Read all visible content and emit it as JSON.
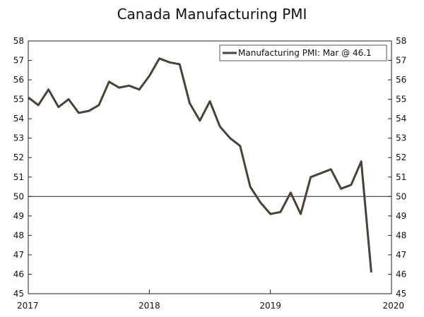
{
  "chart_data": {
    "type": "line",
    "title": "Canada Manufacturing PMI",
    "xlabel": "",
    "ylabel": "",
    "xlim": [
      2017,
      2020
    ],
    "ylim": [
      45,
      58
    ],
    "y_ticks": [
      "45",
      "46",
      "47",
      "48",
      "49",
      "50",
      "51",
      "52",
      "53",
      "54",
      "55",
      "56",
      "57",
      "58"
    ],
    "x_ticks": [
      "2017",
      "2018",
      "2019",
      "2020"
    ],
    "grid": false,
    "reference_line": 50,
    "legend_position": "top-right",
    "series": [
      {
        "name": "Manufacturing PMI: Mar @ 46.1",
        "color": "#4a4238",
        "x": [
          2017.0,
          2017.083,
          2017.167,
          2017.25,
          2017.333,
          2017.417,
          2017.5,
          2017.583,
          2017.667,
          2017.75,
          2017.833,
          2017.917,
          2018.0,
          2018.083,
          2018.167,
          2018.25,
          2018.333,
          2018.417,
          2018.5,
          2018.583,
          2018.667,
          2018.75,
          2018.833,
          2018.917,
          2019.0,
          2019.083,
          2019.167,
          2019.25,
          2019.333,
          2019.417,
          2019.5,
          2019.583,
          2019.667,
          2019.75,
          2019.833
        ],
        "values": [
          55.1,
          54.7,
          55.5,
          54.6,
          55.0,
          54.3,
          54.4,
          54.7,
          55.9,
          55.6,
          55.7,
          55.5,
          56.2,
          57.1,
          56.9,
          56.8,
          54.8,
          53.9,
          54.9,
          53.6,
          53.0,
          52.6,
          50.5,
          49.7,
          49.1,
          49.2,
          50.2,
          49.1,
          51.0,
          51.2,
          51.4,
          50.4,
          50.6,
          51.8,
          46.1
        ]
      }
    ]
  }
}
